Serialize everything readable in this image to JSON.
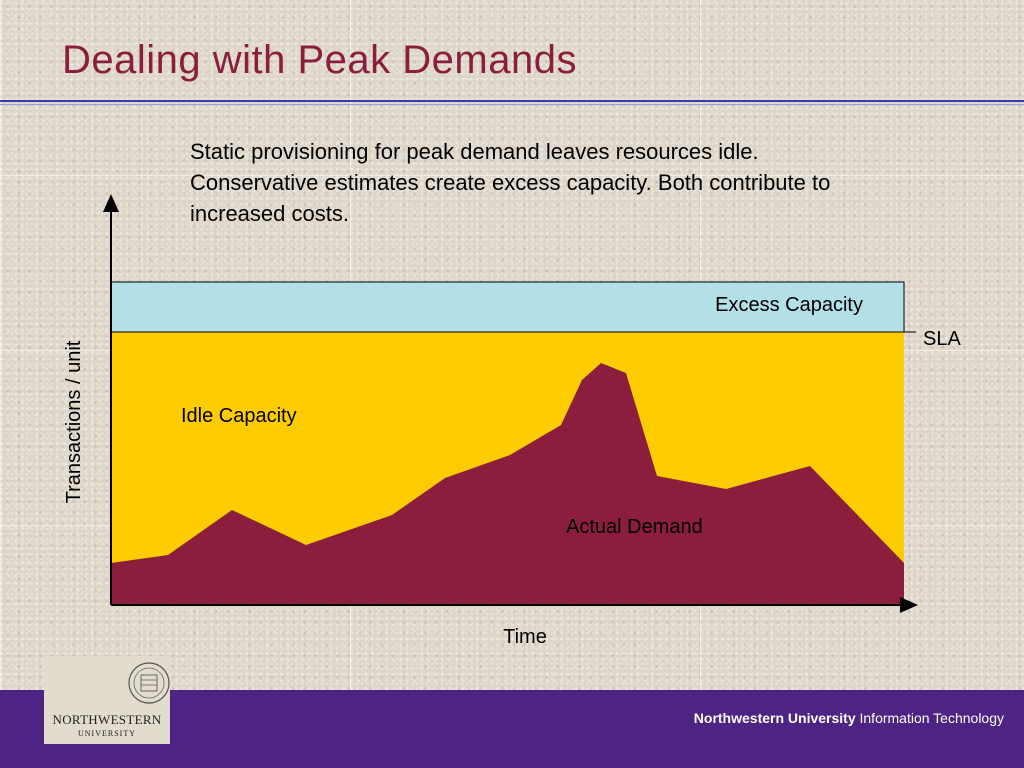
{
  "slide": {
    "title": "Dealing with Peak Demands",
    "description": "Static provisioning for peak demand leaves resources idle.  Conservative estimates create excess capacity.  Both contribute to increased costs."
  },
  "diagram": {
    "y_axis_label": "Transactions / unit",
    "x_axis_label": "Time",
    "excess_label": "Excess Capacity",
    "sla_label": "SLA",
    "idle_label": "Idle Capacity",
    "demand_label": "Actual Demand",
    "colors": {
      "excess": "#b3e0e6",
      "idle": "#ffcc00",
      "demand": "#8b1e3c"
    }
  },
  "footer": {
    "org_bold": "Northwestern University",
    "org_rest": " Information Technology",
    "logo_name": "NORTHWESTERN",
    "logo_sub": "UNIVERSITY"
  }
}
